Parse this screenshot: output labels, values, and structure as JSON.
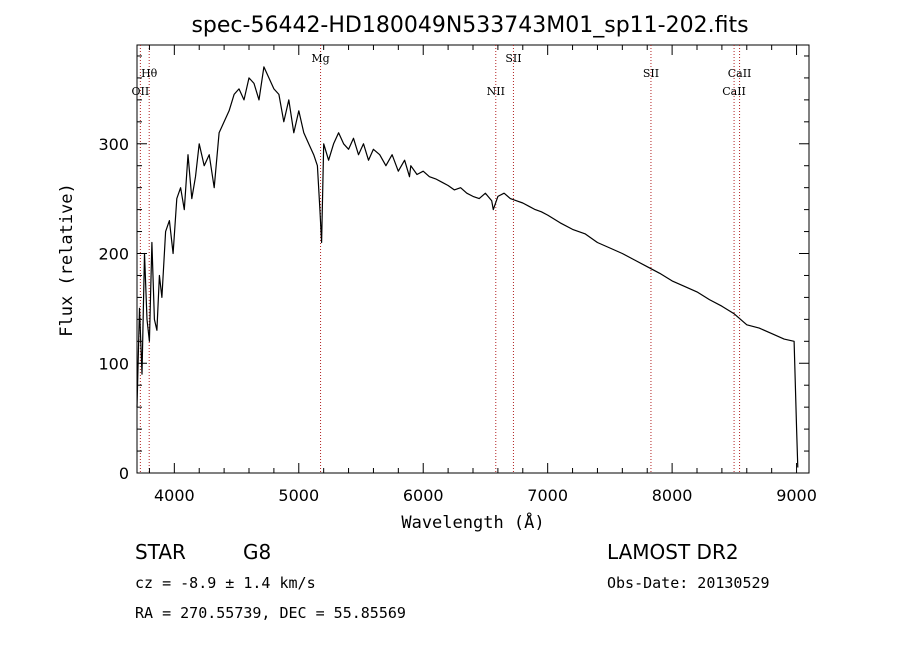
{
  "chart_data": {
    "type": "line",
    "title": "spec-56442-HD180049N533743M01_sp11-202.fits",
    "xlabel": "Wavelength (Å)",
    "ylabel": "Flux (relative)",
    "xlim": [
      3700,
      9100
    ],
    "ylim": [
      0,
      390
    ],
    "xticks": [
      4000,
      5000,
      6000,
      7000,
      8000,
      9000
    ],
    "yticks": [
      0,
      100,
      200,
      300
    ],
    "grid": false,
    "series": [
      {
        "name": "flux",
        "x": [
          3700,
          3720,
          3740,
          3760,
          3780,
          3800,
          3820,
          3840,
          3860,
          3880,
          3900,
          3930,
          3960,
          3990,
          4020,
          4050,
          4080,
          4110,
          4140,
          4170,
          4200,
          4240,
          4280,
          4320,
          4360,
          4400,
          4440,
          4480,
          4520,
          4560,
          4600,
          4640,
          4680,
          4720,
          4760,
          4800,
          4840,
          4880,
          4920,
          4960,
          5000,
          5040,
          5080,
          5120,
          5150,
          5170,
          5183,
          5200,
          5240,
          5280,
          5320,
          5360,
          5400,
          5440,
          5480,
          5520,
          5560,
          5600,
          5650,
          5700,
          5750,
          5800,
          5850,
          5890,
          5900,
          5950,
          6000,
          6050,
          6100,
          6150,
          6200,
          6250,
          6300,
          6350,
          6400,
          6450,
          6500,
          6550,
          6563,
          6600,
          6650,
          6700,
          6750,
          6800,
          6850,
          6900,
          6950,
          7000,
          7100,
          7200,
          7300,
          7400,
          7500,
          7600,
          7700,
          7800,
          7900,
          8000,
          8100,
          8200,
          8300,
          8400,
          8500,
          8600,
          8700,
          8800,
          8900,
          8980,
          9000,
          9010
        ],
        "values": [
          60,
          150,
          90,
          200,
          140,
          120,
          210,
          140,
          130,
          180,
          160,
          220,
          230,
          200,
          250,
          260,
          240,
          290,
          250,
          270,
          300,
          280,
          290,
          260,
          310,
          320,
          330,
          345,
          350,
          340,
          360,
          355,
          340,
          370,
          360,
          350,
          345,
          320,
          340,
          310,
          330,
          310,
          300,
          290,
          280,
          240,
          210,
          300,
          285,
          300,
          310,
          300,
          295,
          305,
          290,
          300,
          285,
          295,
          290,
          280,
          290,
          275,
          285,
          270,
          280,
          272,
          275,
          270,
          268,
          265,
          262,
          258,
          260,
          255,
          252,
          250,
          255,
          248,
          240,
          252,
          255,
          250,
          248,
          246,
          243,
          240,
          238,
          235,
          228,
          222,
          218,
          210,
          205,
          200,
          194,
          188,
          182,
          175,
          170,
          165,
          158,
          152,
          145,
          135,
          132,
          127,
          122,
          120,
          40,
          5
        ]
      }
    ],
    "lines": [
      {
        "label": "Hθ",
        "x": 3798,
        "row": 1
      },
      {
        "label": "OII",
        "x": 3727,
        "row": 2
      },
      {
        "label": "Mg",
        "x": 5175,
        "row": 0
      },
      {
        "label": "NII",
        "x": 6583,
        "row": 2
      },
      {
        "label": "SII",
        "x": 6725,
        "row": 0
      },
      {
        "label": "SII",
        "x": 7830,
        "row": 1
      },
      {
        "label": "CaII",
        "x": 8542,
        "row": 1
      },
      {
        "label": "CaII",
        "x": 8498,
        "row": 2
      }
    ]
  },
  "footer": {
    "object_class": "STAR",
    "subclass": "G8",
    "survey": "LAMOST DR2",
    "cz": "cz = -8.9 ± 1.4 km/s",
    "obs_date": "Obs-Date: 20130529",
    "coords": "RA = 270.55739, DEC =  55.85569"
  },
  "colors": {
    "axis": "#000000",
    "spectrum": "#000000",
    "line_marker": "#b22222"
  }
}
